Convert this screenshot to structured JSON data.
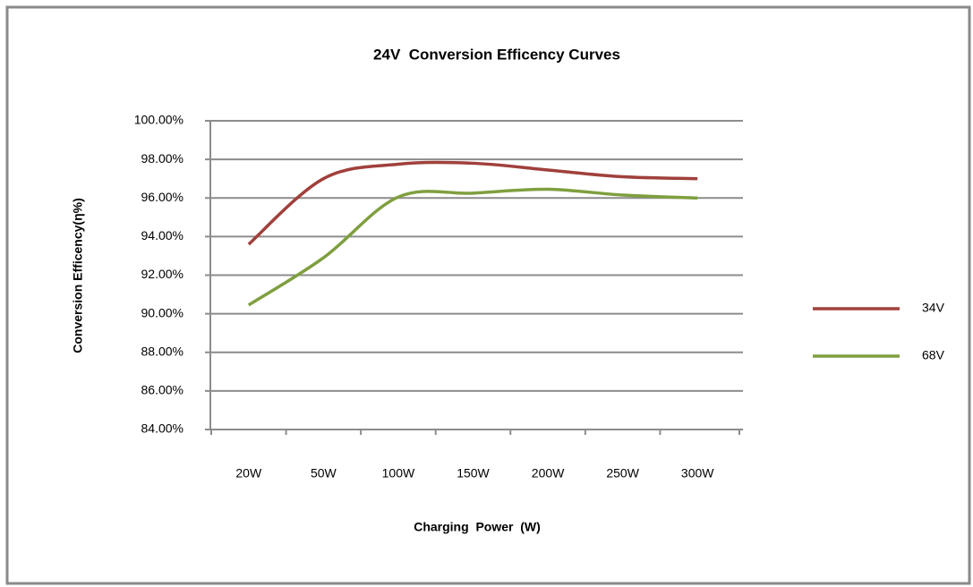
{
  "chart_data": {
    "type": "line",
    "title": "24V  Conversion Efficency Curves",
    "x_label": "Charging  Power  (W)",
    "y_label": "Conversion Efficency(η%)",
    "categories": [
      "20W",
      "50W",
      "100W",
      "150W",
      "200W",
      "250W",
      "300W"
    ],
    "series": [
      {
        "name": "34V",
        "color": "#a0403c",
        "values": [
          93.6,
          97.0,
          97.75,
          97.8,
          97.45,
          97.1,
          97.0
        ]
      },
      {
        "name": "68V",
        "color": "#7f9f3f",
        "values": [
          90.45,
          92.9,
          96.05,
          96.25,
          96.45,
          96.15,
          96.0
        ]
      }
    ],
    "ylim": [
      84,
      100
    ],
    "yticks": [
      {
        "value": 84,
        "label": "84.00%"
      },
      {
        "value": 86,
        "label": "86.00%"
      },
      {
        "value": 88,
        "label": "88.00%"
      },
      {
        "value": 90,
        "label": "90.00%"
      },
      {
        "value": 92,
        "label": "92.00%"
      },
      {
        "value": 94,
        "label": "94.00%"
      },
      {
        "value": 96,
        "label": "96.00%"
      },
      {
        "value": 98,
        "label": "98.00%"
      },
      {
        "value": 100,
        "label": "100.00%"
      }
    ],
    "grid": true,
    "smooth": true,
    "legend": "right"
  }
}
